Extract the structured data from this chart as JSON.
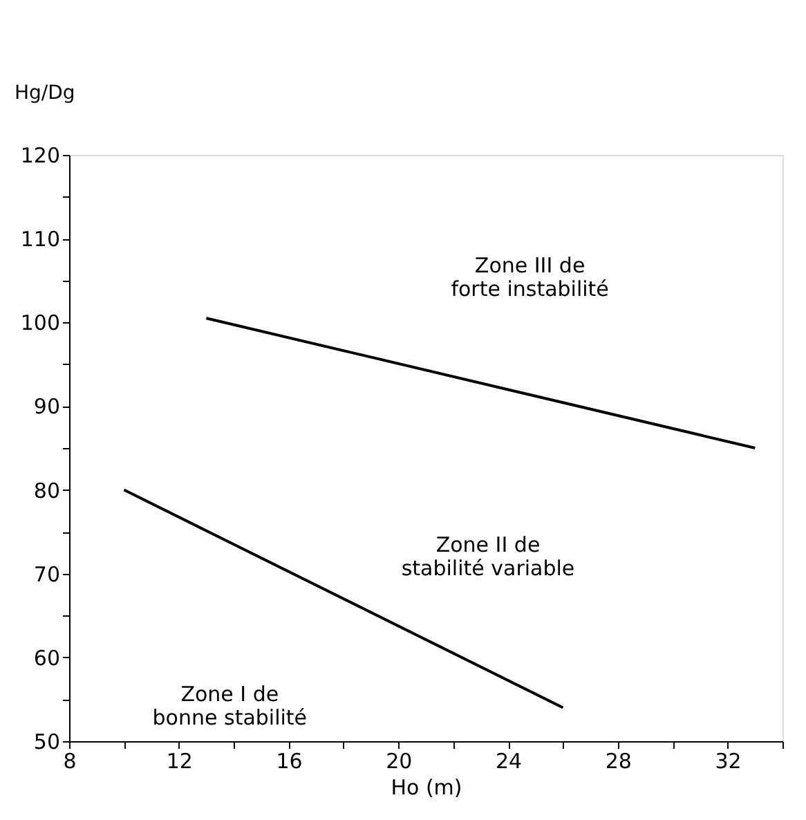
{
  "chart_data": {
    "type": "line",
    "xlabel": "Ho (m)",
    "ylabel": "Hg/Dg",
    "xlim": [
      8,
      34
    ],
    "ylim": [
      50,
      120
    ],
    "xticks": [
      8,
      {
        "value": 10,
        "label": null
      },
      12,
      {
        "value": 14,
        "label": null
      },
      16,
      {
        "value": 18,
        "label": null
      },
      20,
      {
        "value": 22,
        "label": null
      },
      24,
      {
        "value": 26,
        "label": null
      },
      28,
      {
        "value": 30,
        "label": null
      },
      32,
      {
        "value": 34,
        "label": null
      }
    ],
    "yticks": [
      50,
      {
        "value": 55,
        "label": null
      },
      60,
      {
        "value": 65,
        "label": null
      },
      70,
      {
        "value": 75,
        "label": null
      },
      80,
      {
        "value": 85,
        "label": null
      },
      90,
      {
        "value": 95,
        "label": null
      },
      100,
      {
        "value": 105,
        "label": null
      },
      110,
      {
        "value": 115,
        "label": null
      },
      120
    ],
    "grid": false,
    "series": [
      {
        "color": "#000000",
        "x": [
          10,
          26
        ],
        "values": [
          80,
          54
        ]
      },
      {
        "color": "#000000",
        "x": [
          13,
          33
        ],
        "values": [
          100.5,
          85
        ]
      }
    ],
    "annotations": [
      "Zone III de\nforte instabilité",
      "Zone II de\nstabilité variable",
      "Zone I de\nbonne stabilité"
    ]
  }
}
